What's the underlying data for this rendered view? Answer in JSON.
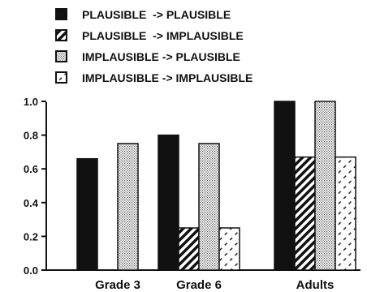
{
  "chart_data": {
    "type": "bar",
    "categories": [
      "Grade 3",
      "Grade 6",
      "Adults"
    ],
    "series": [
      {
        "name": "PLAUSIBLE  -> PLAUSIBLE",
        "pattern": "solid",
        "values": [
          0.66,
          0.8,
          1.0
        ]
      },
      {
        "name": "PLAUSIBLE  -> IMPLAUSIBLE",
        "pattern": "hatch",
        "values": [
          0.0,
          0.25,
          0.67
        ]
      },
      {
        "name": "IMPLAUSIBLE -> PLAUSIBLE",
        "pattern": "dots",
        "values": [
          0.75,
          0.75,
          1.0
        ]
      },
      {
        "name": "IMPLAUSIBLE -> IMPLAUSIBLE",
        "pattern": "dashes",
        "values": [
          0.0,
          0.25,
          0.67
        ]
      }
    ],
    "yticks": [
      "0.0",
      "0.2",
      "0.4",
      "0.6",
      "0.8",
      "1.0"
    ],
    "ylim": [
      0,
      1.0
    ],
    "legend_position": "top",
    "colors": {
      "ink": "#111111",
      "background": "#ffffff"
    }
  }
}
